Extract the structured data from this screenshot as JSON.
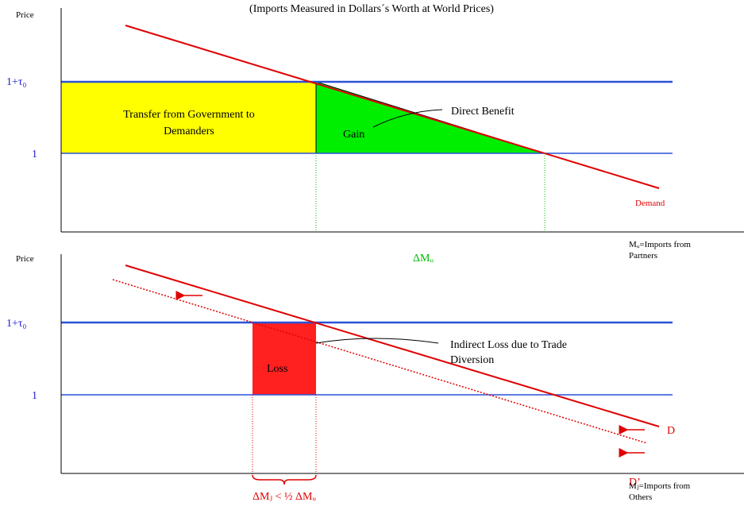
{
  "title": "(Imports Measured in Dollars´s Worth at World Prices)",
  "top": {
    "y_axis_label": "Price",
    "upper_price": "1+τ₀",
    "lower_price": "1",
    "transfer": [
      "Transfer from Government to",
      "Demanders"
    ],
    "gain": "Gain",
    "direct_benefit": "Direct Benefit",
    "demand": "Demand",
    "delta": "ΔMᵤ",
    "x_axis_label": [
      "Mᵤ=Imports from",
      "Partners"
    ]
  },
  "bottom": {
    "y_axis_label": "Price",
    "upper_price": "1+τ₀",
    "lower_price": "1",
    "loss": "Loss",
    "indirect_loss": [
      "Indirect Loss due to Trade",
      "Diversion"
    ],
    "d": "D",
    "d_prime": "D’",
    "delta": "ΔMⱼ < ½ ΔMᵤ",
    "x_axis_label": [
      "Mⱼ=Imports from",
      "Others"
    ]
  }
}
